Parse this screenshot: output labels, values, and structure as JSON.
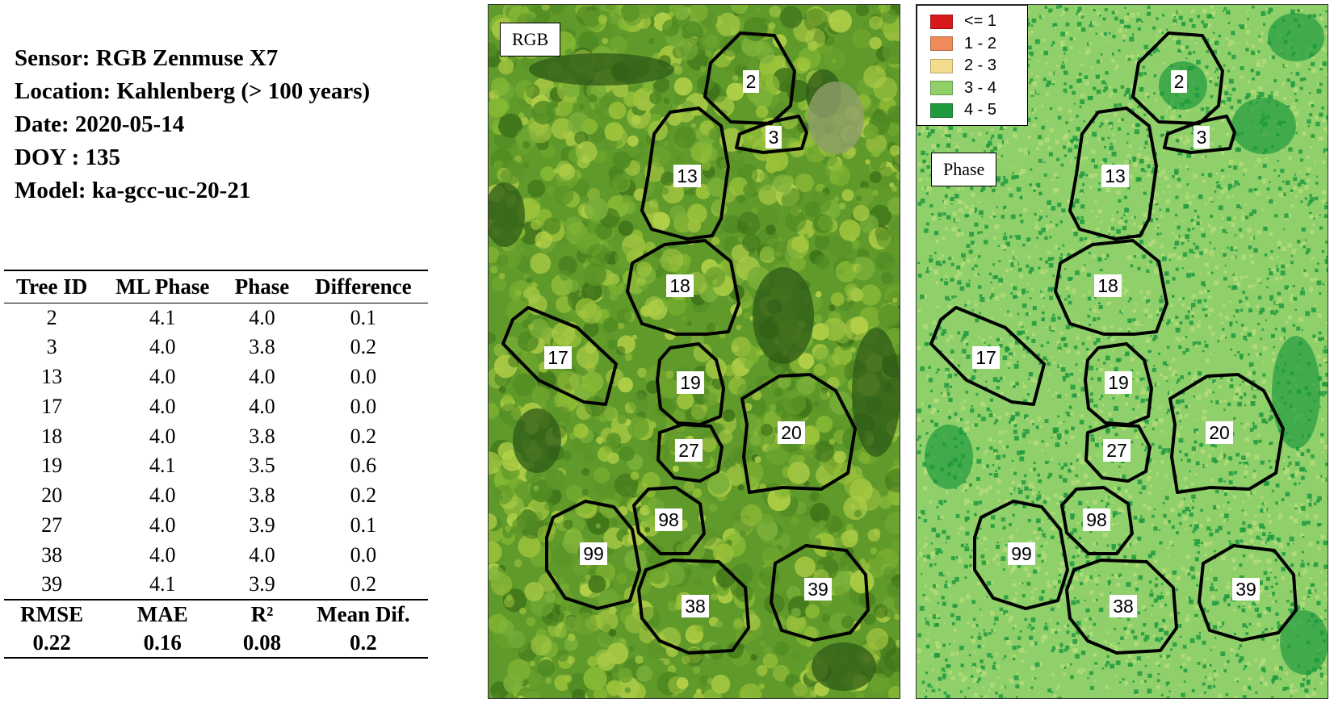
{
  "meta": {
    "sensor": "Sensor: RGB Zenmuse  X7",
    "location": "Location: Kahlenberg (> 100 years)",
    "date": "Date: 2020-05-14",
    "doy": "DOY : 135",
    "model": "Model: ka-gcc-uc-20-21"
  },
  "table": {
    "headers": [
      "Tree ID",
      "ML Phase",
      "Phase",
      "Difference"
    ],
    "rows": [
      [
        "2",
        "4.1",
        "4.0",
        "0.1"
      ],
      [
        "3",
        "4.0",
        "3.8",
        "0.2"
      ],
      [
        "13",
        "4.0",
        "4.0",
        "0.0"
      ],
      [
        "17",
        "4.0",
        "4.0",
        "0.0"
      ],
      [
        "18",
        "4.0",
        "3.8",
        "0.2"
      ],
      [
        "19",
        "4.1",
        "3.5",
        "0.6"
      ],
      [
        "20",
        "4.0",
        "3.8",
        "0.2"
      ],
      [
        "27",
        "4.0",
        "3.9",
        "0.1"
      ],
      [
        "38",
        "4.0",
        "4.0",
        "0.0"
      ],
      [
        "39",
        "4.1",
        "3.9",
        "0.2"
      ]
    ],
    "summary_labels": [
      "RMSE",
      "MAE",
      "R²",
      "Mean Dif."
    ],
    "summary_values": [
      "0.22",
      "0.16",
      "0.08",
      "0.2"
    ]
  },
  "panels": {
    "rgb_label": "RGB",
    "phase_label": "Phase"
  },
  "legend": [
    {
      "label": "<= 1",
      "color": "#d7191c"
    },
    {
      "label": "1 - 2",
      "color": "#f08a5a"
    },
    {
      "label": "2 - 3",
      "color": "#f3dc8e"
    },
    {
      "label": "3 - 4",
      "color": "#8fd06a"
    },
    {
      "label": "4 - 5",
      "color": "#1f9a3e"
    }
  ],
  "colors": {
    "rgb_base": "#5f9a2a",
    "rgb_light": "#9cc23a",
    "rgb_dark": "#2d5a17",
    "phase_base": "#8fd06a",
    "phase_dark": "#1f9a3e"
  },
  "trees": [
    "2",
    "3",
    "13",
    "17",
    "18",
    "19",
    "20",
    "27",
    "38",
    "39",
    "98",
    "99"
  ]
}
